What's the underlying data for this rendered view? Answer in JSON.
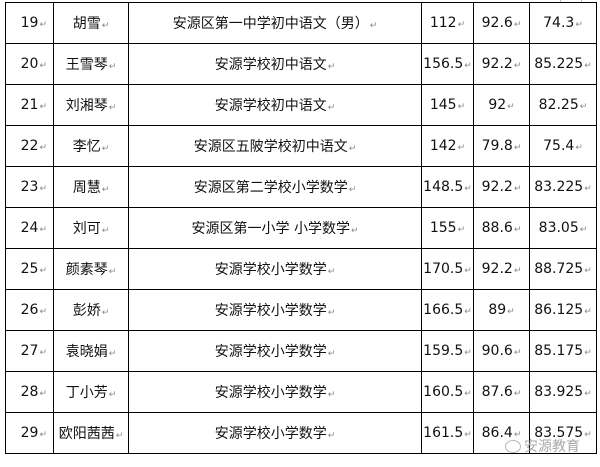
{
  "table": {
    "rows": [
      {
        "no": "19",
        "name": "胡雪",
        "school": "安源区第一中学初中语文（男）",
        "s1": "112",
        "s2": "92.6",
        "total": "74.3"
      },
      {
        "no": "20",
        "name": "王雪琴",
        "school": "安源学校初中语文",
        "s1": "156.5",
        "s2": "92.2",
        "total": "85.225"
      },
      {
        "no": "21",
        "name": "刘湘琴",
        "school": "安源学校初中语文",
        "s1": "145",
        "s2": "92",
        "total": "82.25"
      },
      {
        "no": "22",
        "name": "李忆",
        "school": "安源区五陂学校初中语文",
        "s1": "142",
        "s2": "79.8",
        "total": "75.4"
      },
      {
        "no": "23",
        "name": "周慧",
        "school": "安源区第二学校小学数学",
        "s1": "148.5",
        "s2": "92.2",
        "total": "83.225"
      },
      {
        "no": "24",
        "name": "刘可",
        "school": "安源区第一小学 小学数学",
        "s1": "155",
        "s2": "88.6",
        "total": "83.05"
      },
      {
        "no": "25",
        "name": "颜素琴",
        "school": "安源学校小学数学",
        "s1": "170.5",
        "s2": "92.2",
        "total": "88.725"
      },
      {
        "no": "26",
        "name": "彭娇",
        "school": "安源学校小学数学",
        "s1": "166.5",
        "s2": "89",
        "total": "86.125"
      },
      {
        "no": "27",
        "name": "袁晓娟",
        "school": "安源学校小学数学",
        "s1": "159.5",
        "s2": "90.6",
        "total": "85.175"
      },
      {
        "no": "28",
        "name": "丁小芳",
        "school": "安源学校小学数学",
        "s1": "160.5",
        "s2": "87.6",
        "total": "83.925"
      },
      {
        "no": "29",
        "name": "欧阳茜茜",
        "school": "安源学校小学数学",
        "s1": "161.5",
        "s2": "86.4",
        "total": "83.575"
      }
    ]
  },
  "watermark": {
    "text": "安源教育",
    "icon": "wechat-icon"
  }
}
